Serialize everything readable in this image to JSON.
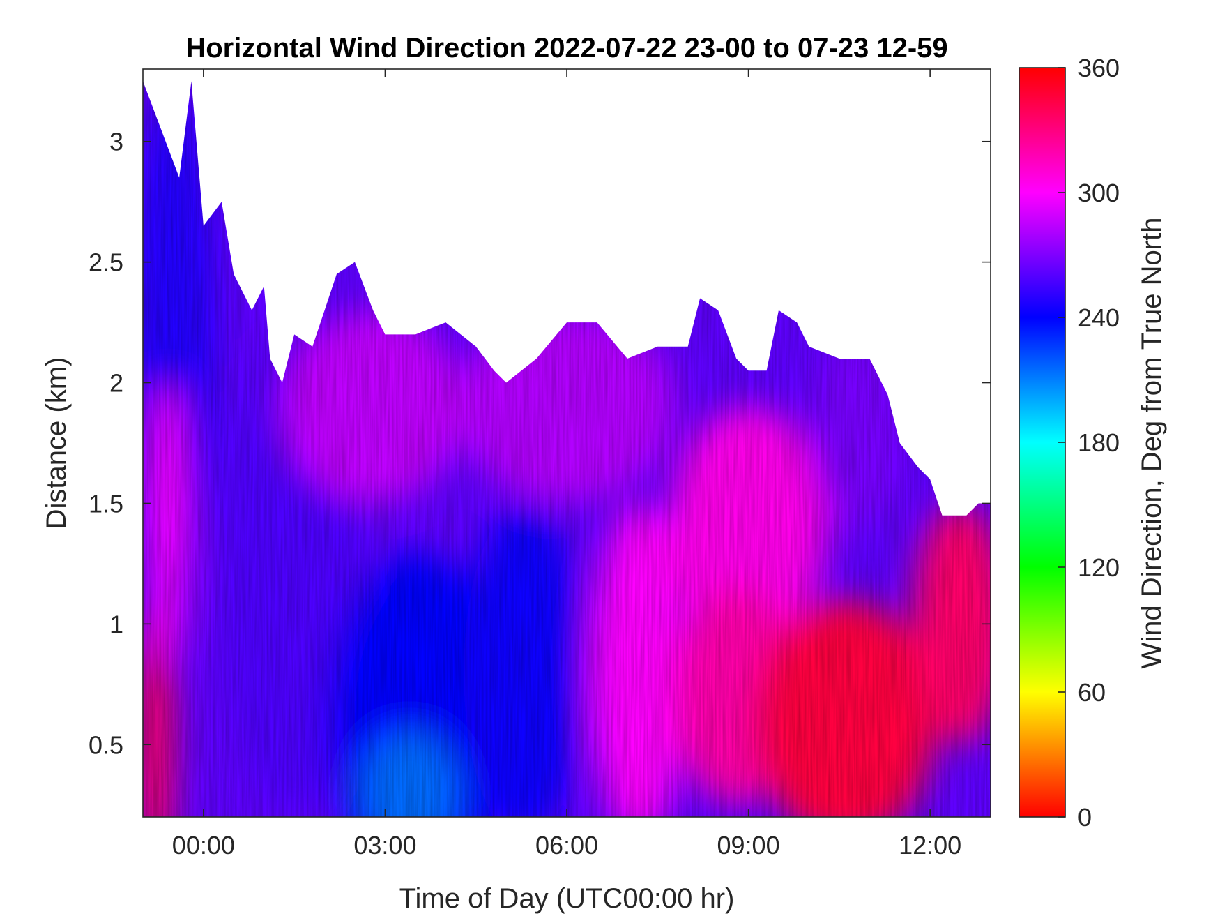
{
  "chart_data": {
    "type": "heatmap",
    "title": "Horizontal Wind Direction 2022-07-22 23-00 to 07-23 12-59",
    "xlabel": "Time of Day (UTC00:00 hr)",
    "ylabel": "Distance (km)",
    "colorbar_label": "Wind Direction, Deg from True North",
    "x_unit": "hours relative to 2022-07-23 00:00 UTC",
    "xlim": [
      -1.0,
      13.0
    ],
    "ylim": [
      0.2,
      3.3
    ],
    "clim": [
      0,
      360
    ],
    "colormap": "hsv",
    "x_ticks": [
      0,
      3,
      6,
      9,
      12
    ],
    "x_tick_labels": [
      "00:00",
      "03:00",
      "06:00",
      "09:00",
      "12:00"
    ],
    "y_ticks": [
      0.5,
      1,
      1.5,
      2,
      2.5,
      3
    ],
    "y_tick_labels": [
      "0.5",
      "1",
      "1.5",
      "2",
      "2.5",
      "3"
    ],
    "colorbar_ticks": [
      0,
      60,
      120,
      180,
      240,
      300,
      360
    ],
    "colorbar_tick_labels": [
      "0",
      "60",
      "120",
      "180",
      "240",
      "300",
      "360"
    ],
    "colorbar_colors": [
      "#ff0000",
      "#ffff00",
      "#00ff00",
      "#00ffff",
      "#0000ff",
      "#ff00ff",
      "#ff0000"
    ],
    "data_top_km": {
      "x": [
        -1.0,
        -0.7,
        -0.4,
        -0.2,
        0.0,
        0.3,
        0.5,
        0.8,
        1.0,
        1.1,
        1.3,
        1.5,
        1.8,
        2.0,
        2.2,
        2.5,
        2.8,
        3.0,
        3.5,
        4.0,
        4.5,
        4.8,
        5.0,
        5.5,
        6.0,
        6.5,
        7.0,
        7.5,
        8.0,
        8.2,
        8.5,
        8.8,
        9.0,
        9.3,
        9.5,
        9.8,
        10.0,
        10.5,
        11.0,
        11.3,
        11.5,
        11.8,
        12.0,
        12.2,
        12.4,
        12.6,
        12.8,
        13.0
      ],
      "km": [
        3.25,
        3.05,
        2.85,
        3.25,
        2.65,
        2.75,
        2.45,
        2.3,
        2.4,
        2.1,
        2.0,
        2.2,
        2.15,
        2.3,
        2.45,
        2.5,
        2.3,
        2.2,
        2.2,
        2.25,
        2.15,
        2.05,
        2.0,
        2.1,
        2.25,
        2.25,
        2.1,
        2.15,
        2.15,
        2.35,
        2.3,
        2.1,
        2.05,
        2.05,
        2.3,
        2.25,
        2.15,
        2.1,
        2.1,
        1.95,
        1.75,
        1.65,
        1.6,
        1.45,
        1.45,
        1.45,
        1.5,
        1.5
      ]
    },
    "data_patches_deg": [
      {
        "x": -0.5,
        "km": 2.2,
        "rx": 0.7,
        "ry": 1.0,
        "deg": 248
      },
      {
        "x": -0.8,
        "km": 0.5,
        "rx": 0.3,
        "ry": 0.6,
        "deg": 340
      },
      {
        "x": -0.6,
        "km": 1.4,
        "rx": 0.3,
        "ry": 0.6,
        "deg": 300
      },
      {
        "x": 1.5,
        "km": 1.2,
        "rx": 1.2,
        "ry": 1.0,
        "deg": 258
      },
      {
        "x": 3.5,
        "km": 0.6,
        "rx": 1.5,
        "ry": 0.7,
        "deg": 240
      },
      {
        "x": 3.4,
        "km": 0.3,
        "rx": 0.8,
        "ry": 0.25,
        "deg": 215
      },
      {
        "x": 5.3,
        "km": 0.8,
        "rx": 1.0,
        "ry": 0.7,
        "deg": 243
      },
      {
        "x": 2.8,
        "km": 1.9,
        "rx": 1.5,
        "ry": 0.4,
        "deg": 285
      },
      {
        "x": 6.0,
        "km": 1.9,
        "rx": 1.8,
        "ry": 0.4,
        "deg": 282
      },
      {
        "x": 7.2,
        "km": 0.8,
        "rx": 0.8,
        "ry": 0.7,
        "deg": 300
      },
      {
        "x": 9.0,
        "km": 1.4,
        "rx": 1.3,
        "ry": 0.5,
        "deg": 305
      },
      {
        "x": 8.8,
        "km": 0.7,
        "rx": 1.0,
        "ry": 0.45,
        "deg": 320
      },
      {
        "x": 10.6,
        "km": 0.6,
        "rx": 1.5,
        "ry": 0.5,
        "deg": 345
      },
      {
        "x": 12.5,
        "km": 1.0,
        "rx": 0.8,
        "ry": 0.5,
        "deg": 335
      },
      {
        "x": 12.5,
        "km": 1.9,
        "rx": 0.6,
        "ry": 0.3,
        "deg": 252
      },
      {
        "x": 10.8,
        "km": 1.8,
        "rx": 0.8,
        "ry": 0.4,
        "deg": 268
      }
    ]
  }
}
